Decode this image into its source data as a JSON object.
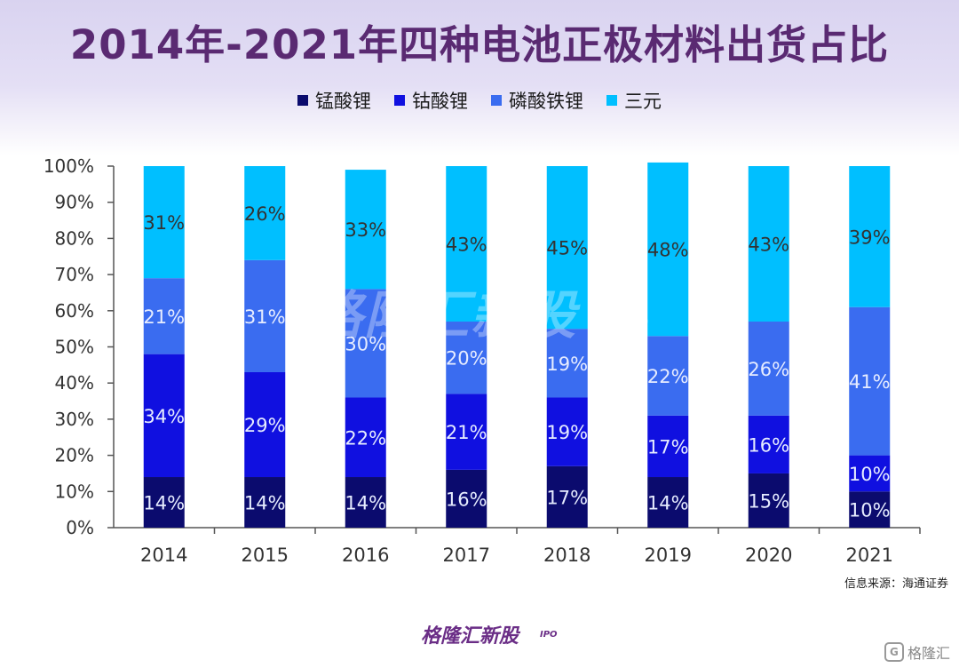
{
  "title": "2014年-2021年四种电池正极材料出货占比",
  "source": "信息来源：海通证券",
  "watermark": {
    "brand": "格隆汇新股",
    "tag": "IPO"
  },
  "footer": {
    "brand": "格隆汇新股",
    "tag": "IPO",
    "corner_mark": "G",
    "corner_text": "格隆汇"
  },
  "chart_data": {
    "type": "bar",
    "stacked": true,
    "categories": [
      "2014",
      "2015",
      "2016",
      "2017",
      "2018",
      "2019",
      "2020",
      "2021"
    ],
    "series": [
      {
        "name": "锰酸锂",
        "color": "#0b0b6e",
        "values": [
          14,
          14,
          14,
          16,
          17,
          14,
          15,
          10
        ],
        "labels": [
          "14%",
          "14%",
          "14%",
          "16%",
          "17%",
          "14%",
          "15%",
          "10%"
        ]
      },
      {
        "name": "钴酸锂",
        "color": "#1010e0",
        "values": [
          34,
          29,
          22,
          21,
          19,
          17,
          16,
          10
        ],
        "labels": [
          "34%",
          "29%",
          "22%",
          "21%",
          "19%",
          "17%",
          "16%",
          "10%"
        ]
      },
      {
        "name": "磷酸铁锂",
        "color": "#3a6cf0",
        "values": [
          21,
          31,
          30,
          20,
          19,
          22,
          26,
          41
        ],
        "labels": [
          "21%",
          "31%",
          "30%",
          "20%",
          "19%",
          "22%",
          "26%",
          "41%"
        ]
      },
      {
        "name": "三元",
        "color": "#00bfff",
        "values": [
          31,
          26,
          33,
          43,
          45,
          48,
          43,
          39
        ],
        "labels": [
          "31%",
          "26%",
          "33%",
          "43%",
          "45%",
          "48%",
          "43%",
          "39%"
        ]
      }
    ],
    "yticks": [
      "0%",
      "10%",
      "20%",
      "30%",
      "40%",
      "50%",
      "60%",
      "70%",
      "80%",
      "90%",
      "100%"
    ],
    "ylim": [
      0,
      100
    ],
    "grid": false,
    "legend": "top"
  }
}
